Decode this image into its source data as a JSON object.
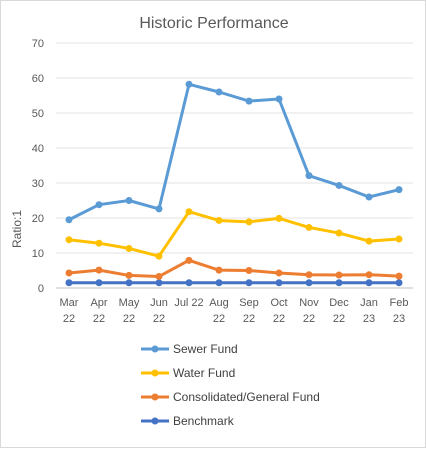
{
  "chart_data": {
    "type": "line",
    "title": "Historic Performance",
    "xlabel": "",
    "ylabel": "Ratio:1",
    "ylim": [
      0,
      70
    ],
    "yticks": [
      0,
      10,
      20,
      30,
      40,
      50,
      60,
      70
    ],
    "grid": "horizontal",
    "legend": "bottom",
    "categories": [
      [
        "Mar",
        "22"
      ],
      [
        "Apr",
        "22"
      ],
      [
        "May",
        "22"
      ],
      [
        "Jun",
        "22"
      ],
      [
        "Jul 22",
        ""
      ],
      [
        "Aug",
        "22"
      ],
      [
        "Sep",
        "22"
      ],
      [
        "Oct",
        "22"
      ],
      [
        "Nov",
        "22"
      ],
      [
        "Dec",
        "22"
      ],
      [
        "Jan",
        "23"
      ],
      [
        "Feb",
        "23"
      ]
    ],
    "series": [
      {
        "name": "Sewer Fund",
        "color": "#5b9bd5",
        "values": [
          19.5,
          23.8,
          25.0,
          22.6,
          58.2,
          56.0,
          53.4,
          54.0,
          32.1,
          29.3,
          26.0,
          28.1
        ]
      },
      {
        "name": "Water Fund",
        "color": "#ffc000",
        "values": [
          13.8,
          12.8,
          11.3,
          9.1,
          21.8,
          19.3,
          18.9,
          19.9,
          17.3,
          15.7,
          13.4,
          14.0
        ]
      },
      {
        "name": "Consolidated/General Fund",
        "color": "#ed7d31",
        "values": [
          4.3,
          5.1,
          3.6,
          3.3,
          7.9,
          5.1,
          5.0,
          4.3,
          3.8,
          3.7,
          3.8,
          3.4
        ]
      },
      {
        "name": "Benchmark",
        "color": "#4472c4",
        "values": [
          1.5,
          1.5,
          1.5,
          1.5,
          1.5,
          1.5,
          1.5,
          1.5,
          1.5,
          1.5,
          1.5,
          1.5
        ]
      }
    ]
  }
}
